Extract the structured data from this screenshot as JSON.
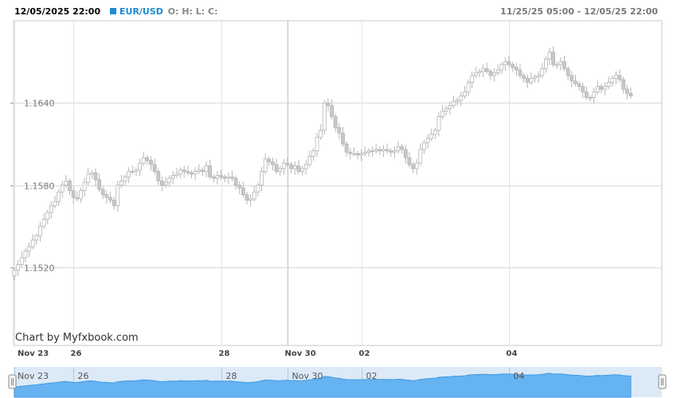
{
  "header": {
    "datetime": "12/05/2025 22:00",
    "symbol": "EUR/USD",
    "ohlc_label": "O: H: L: C:",
    "range": "11/25/25 05:00 - 12/05/25 22:00"
  },
  "credit": "Chart by Myfxbook.com",
  "colors": {
    "candle": "#c8c8c8",
    "grid": "#d8d8d8",
    "navigator_fill": "#66b3f2",
    "navigator_bg": "#dceaf7",
    "accent": "#1a8ad4"
  },
  "chart_data": {
    "type": "candlestick",
    "symbol": "EUR/USD",
    "y_ticks": [
      "1.1520",
      "1.1580",
      "1.1640"
    ],
    "y_tick_values": [
      1.152,
      1.158,
      1.164
    ],
    "ylim": [
      1.1463,
      1.17
    ],
    "x_ticks": [
      "Nov 23",
      "26",
      "28",
      "Nov 30",
      "02",
      "04"
    ],
    "x_tick_index": [
      0,
      16,
      56,
      74,
      94,
      134
    ],
    "grid": true,
    "close": [
      1.1518,
      1.1522,
      1.1527,
      1.1532,
      1.1535,
      1.154,
      1.1543,
      1.155,
      1.1555,
      1.156,
      1.1565,
      1.1568,
      1.1575,
      1.158,
      1.1583,
      1.1576,
      1.1571,
      1.157,
      1.1576,
      1.1582,
      1.1588,
      1.1589,
      1.1584,
      1.1577,
      1.1573,
      1.1571,
      1.1569,
      1.1565,
      1.158,
      1.1583,
      1.1586,
      1.159,
      1.159,
      1.1591,
      1.1596,
      1.16,
      1.1598,
      1.1595,
      1.159,
      1.1583,
      1.158,
      1.1582,
      1.1585,
      1.1587,
      1.1588,
      1.1591,
      1.159,
      1.1589,
      1.1588,
      1.159,
      1.1591,
      1.159,
      1.1594,
      1.1586,
      1.1585,
      1.1587,
      1.1586,
      1.1585,
      1.1586,
      1.1585,
      1.158,
      1.1578,
      1.1573,
      1.1569,
      1.157,
      1.1575,
      1.158,
      1.159,
      1.1599,
      1.1597,
      1.1595,
      1.159,
      1.1592,
      1.1596,
      1.1595,
      1.1592,
      1.1594,
      1.159,
      1.1592,
      1.1595,
      1.1601,
      1.1605,
      1.1615,
      1.162,
      1.164,
      1.1638,
      1.163,
      1.1622,
      1.1618,
      1.161,
      1.1604,
      1.1603,
      1.1603,
      1.1602,
      1.1603,
      1.1604,
      1.1605,
      1.1605,
      1.1606,
      1.1605,
      1.1606,
      1.1605,
      1.1604,
      1.1605,
      1.1608,
      1.1606,
      1.16,
      1.1595,
      1.1592,
      1.1596,
      1.1606,
      1.1611,
      1.1614,
      1.1617,
      1.162,
      1.163,
      1.1634,
      1.1636,
      1.1638,
      1.1641,
      1.1642,
      1.1645,
      1.1648,
      1.1655,
      1.166,
      1.1662,
      1.1663,
      1.1665,
      1.1663,
      1.166,
      1.1662,
      1.1664,
      1.1668,
      1.167,
      1.1668,
      1.1666,
      1.1664,
      1.166,
      1.1658,
      1.1655,
      1.1658,
      1.1659,
      1.166,
      1.1665,
      1.1672,
      1.1677,
      1.1668,
      1.1668,
      1.167,
      1.1665,
      1.166,
      1.1656,
      1.1654,
      1.1652,
      1.1648,
      1.1644,
      1.1644,
      1.1648,
      1.1652,
      1.165,
      1.1652,
      1.1655,
      1.1658,
      1.166,
      1.1657,
      1.165,
      1.1647,
      1.1645
    ]
  }
}
